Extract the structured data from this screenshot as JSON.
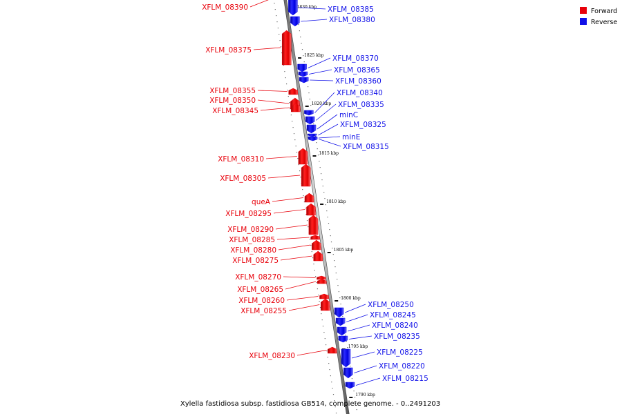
{
  "caption": "Xylella fastidiosa subsp. fastidiosa GB514, complete genome. - 0..2491203",
  "legend": {
    "forward_label": "Forward",
    "reverse_label": "Reverse",
    "forward_color": "#e8000a",
    "reverse_color": "#1010e8"
  },
  "ruler_ticks": [
    {
      "label": "1830 kbp"
    },
    {
      "label": "1825 kbp"
    },
    {
      "label": "1820 kbp"
    },
    {
      "label": "1815 kbp"
    },
    {
      "label": "1810 kbp"
    },
    {
      "label": "1805 kbp"
    },
    {
      "label": "1800 kbp"
    },
    {
      "label": "1795 kbp"
    },
    {
      "label": "1790 kbp"
    }
  ],
  "genes": [
    {
      "name": "XFLM_08390",
      "strand": "forward"
    },
    {
      "name": "XFLM_08385",
      "strand": "reverse"
    },
    {
      "name": "XFLM_08380",
      "strand": "reverse"
    },
    {
      "name": "XFLM_08375",
      "strand": "forward"
    },
    {
      "name": "XFLM_08370",
      "strand": "reverse"
    },
    {
      "name": "XFLM_08365",
      "strand": "reverse"
    },
    {
      "name": "XFLM_08360",
      "strand": "reverse"
    },
    {
      "name": "XFLM_08355",
      "strand": "forward"
    },
    {
      "name": "XFLM_08350",
      "strand": "forward"
    },
    {
      "name": "XFLM_08345",
      "strand": "forward"
    },
    {
      "name": "XFLM_08340",
      "strand": "reverse"
    },
    {
      "name": "XFLM_08335",
      "strand": "reverse"
    },
    {
      "name": "minC",
      "strand": "reverse"
    },
    {
      "name": "XFLM_08325",
      "strand": "reverse"
    },
    {
      "name": "minE",
      "strand": "reverse"
    },
    {
      "name": "XFLM_08315",
      "strand": "reverse"
    },
    {
      "name": "XFLM_08310",
      "strand": "forward"
    },
    {
      "name": "XFLM_08305",
      "strand": "forward"
    },
    {
      "name": "queA",
      "strand": "forward"
    },
    {
      "name": "XFLM_08295",
      "strand": "forward"
    },
    {
      "name": "XFLM_08290",
      "strand": "forward"
    },
    {
      "name": "XFLM_08285",
      "strand": "forward"
    },
    {
      "name": "XFLM_08280",
      "strand": "forward"
    },
    {
      "name": "XFLM_08275",
      "strand": "forward"
    },
    {
      "name": "XFLM_08270",
      "strand": "forward"
    },
    {
      "name": "XFLM_08265",
      "strand": "forward"
    },
    {
      "name": "XFLM_08260",
      "strand": "forward"
    },
    {
      "name": "XFLM_08255",
      "strand": "forward"
    },
    {
      "name": "XFLM_08250",
      "strand": "reverse"
    },
    {
      "name": "XFLM_08245",
      "strand": "reverse"
    },
    {
      "name": "XFLM_08240",
      "strand": "reverse"
    },
    {
      "name": "XFLM_08235",
      "strand": "reverse"
    },
    {
      "name": "XFLM_08230",
      "strand": "forward"
    },
    {
      "name": "XFLM_08225",
      "strand": "reverse"
    },
    {
      "name": "XFLM_08220",
      "strand": "reverse"
    },
    {
      "name": "XFLM_08215",
      "strand": "reverse"
    }
  ]
}
